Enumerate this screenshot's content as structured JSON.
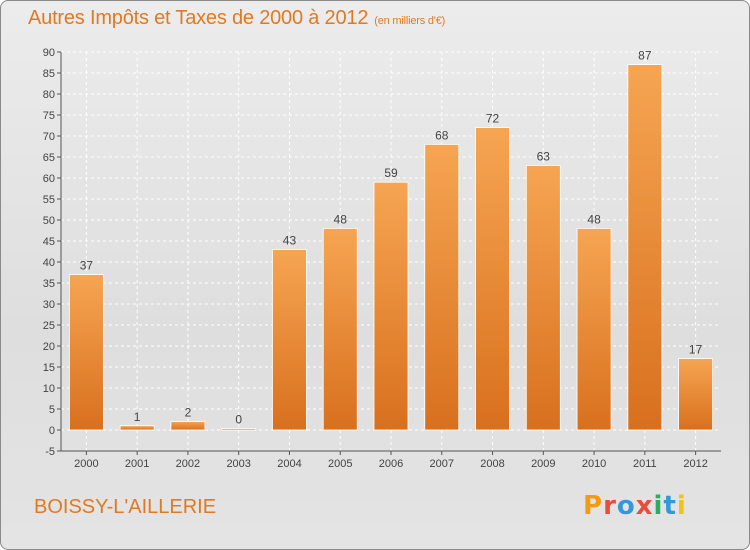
{
  "header": {
    "title": "Autres Impôts et Taxes de 2000 à 2012",
    "unit": "(en milliers d'€)"
  },
  "footer": {
    "commune": "BOISSY-L'AILLERIE",
    "logo_text": "Proxiti"
  },
  "colors": {
    "accent": "#e07a22",
    "bar_light": "#f6a552",
    "bar_dark": "#d8701e",
    "logo_letters": [
      "#f39c12",
      "#e74c3c",
      "#3498db",
      "#e74c3c",
      "#27ae60",
      "#3498db",
      "#f1c40f"
    ]
  },
  "chart_data": {
    "type": "bar",
    "title": "Autres Impôts et Taxes de 2000 à 2012",
    "subtitle": "(en milliers d'€)",
    "categories": [
      "2000",
      "2001",
      "2002",
      "2003",
      "2004",
      "2005",
      "2006",
      "2007",
      "2008",
      "2009",
      "2010",
      "2011",
      "2012"
    ],
    "values": [
      37,
      1,
      2,
      0,
      43,
      48,
      59,
      68,
      72,
      63,
      48,
      87,
      17
    ],
    "ylim": [
      -5,
      90
    ],
    "yticks": [
      -5,
      0,
      5,
      10,
      15,
      20,
      25,
      30,
      35,
      40,
      45,
      50,
      55,
      60,
      65,
      70,
      75,
      80,
      85,
      90
    ],
    "grid": true,
    "legend": "none"
  }
}
